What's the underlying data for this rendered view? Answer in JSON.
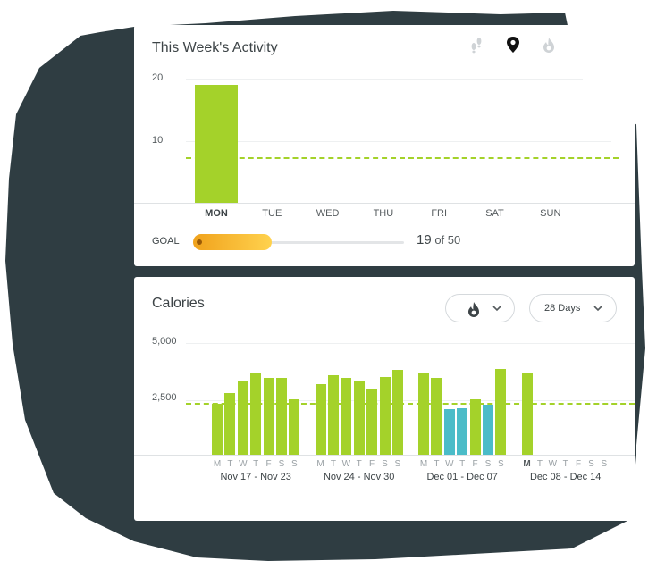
{
  "colors": {
    "backdrop": "#2f3d42",
    "bar": "#a4d22a",
    "bar_below_goal": "#4bbcc8",
    "goal_line": "#a4d22a",
    "goal_fill_start": "#f0a21c",
    "goal_fill_end": "#ffd24e",
    "text": "#3d4447"
  },
  "activity": {
    "title": "This Week's Activity",
    "icons": [
      "footsteps-icon",
      "location-pin-icon",
      "flame-icon"
    ],
    "selected_icon": "location-pin-icon",
    "goal": {
      "label": "GOAL",
      "current": "19",
      "of_text": "of 50",
      "progress_fraction": 0.38
    }
  },
  "calories": {
    "title": "Calories",
    "metric_icon": "flame-icon",
    "range_label": "28 Days"
  },
  "chart_data": [
    {
      "type": "bar",
      "categories": [
        "MON",
        "TUE",
        "WED",
        "THU",
        "FRI",
        "SAT",
        "SUN"
      ],
      "values": [
        19,
        null,
        null,
        null,
        null,
        null,
        null
      ],
      "ylim": [
        0,
        20
      ],
      "yticks": [
        "10",
        "20"
      ],
      "ytick_values": [
        10,
        20
      ],
      "goal_value": 7.2,
      "highlighted_category": "MON",
      "grid": true
    },
    {
      "type": "bar",
      "ylim": [
        0,
        5000
      ],
      "yticks": [
        "2,500",
        "5,000"
      ],
      "ytick_values": [
        2500,
        5000
      ],
      "goal_value": 2300,
      "grid": true,
      "weeks": [
        {
          "label": "Nov 17 - Nov 23",
          "days": [
            "M",
            "T",
            "W",
            "T",
            "F",
            "S",
            "S"
          ],
          "values": [
            2300,
            2780,
            3300,
            3700,
            3450,
            3450,
            2500
          ],
          "below_goal": [
            false,
            false,
            false,
            false,
            false,
            false,
            false
          ]
        },
        {
          "label": "Nov 24 - Nov 30",
          "days": [
            "M",
            "T",
            "W",
            "T",
            "F",
            "S",
            "S"
          ],
          "values": [
            3150,
            3550,
            3450,
            3300,
            2950,
            3500,
            3800
          ],
          "below_goal": [
            false,
            false,
            false,
            false,
            false,
            false,
            false
          ]
        },
        {
          "label": "Dec 01 - Dec 07",
          "days": [
            "M",
            "T",
            "W",
            "T",
            "F",
            "S",
            "S"
          ],
          "values": [
            3650,
            3450,
            2050,
            2100,
            2500,
            2250,
            3850
          ],
          "below_goal": [
            false,
            false,
            true,
            true,
            false,
            true,
            false
          ]
        },
        {
          "label": "Dec 08 - Dec 14",
          "days": [
            "M",
            "T",
            "W",
            "T",
            "F",
            "S",
            "S"
          ],
          "values": [
            3650,
            null,
            null,
            null,
            null,
            null,
            null
          ],
          "below_goal": [
            false,
            false,
            false,
            false,
            false,
            false,
            false
          ],
          "current_day": 0
        }
      ]
    }
  ]
}
